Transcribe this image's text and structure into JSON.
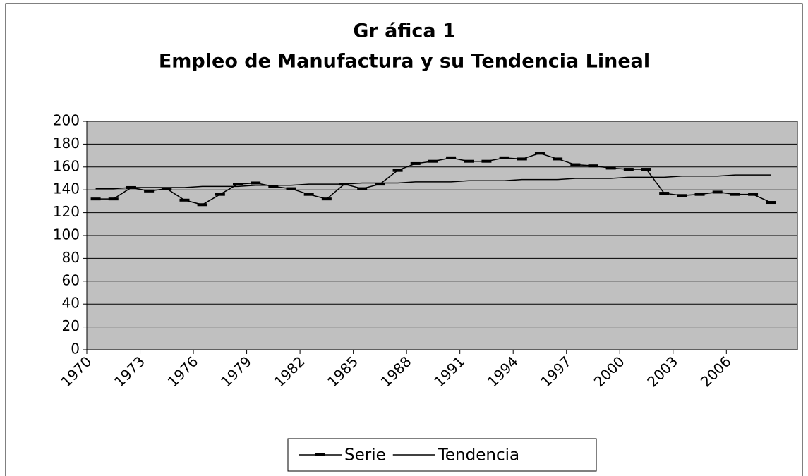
{
  "chart_data": {
    "type": "line",
    "title": "Gr áfica 1",
    "subtitle": "Empleo de Manufactura y su Tendencia Lineal",
    "categories": [
      "1970",
      null,
      null,
      "1973",
      null,
      null,
      "1976",
      null,
      null,
      "1979",
      null,
      null,
      "1982",
      null,
      null,
      "1985",
      null,
      null,
      "1988",
      null,
      null,
      "1991",
      null,
      null,
      "1994",
      null,
      null,
      "1997",
      null,
      null,
      "2000",
      null,
      null,
      "2003",
      null,
      null,
      "2006",
      null,
      null,
      null
    ],
    "series": [
      {
        "name": "Serie",
        "color": "#000000",
        "marker": true,
        "values": [
          132,
          132,
          142,
          139,
          141,
          131,
          127,
          136,
          145,
          146,
          143,
          141,
          136,
          132,
          145,
          141,
          145,
          157,
          163,
          165,
          168,
          165,
          165,
          168,
          167,
          172,
          167,
          162,
          161,
          159,
          158,
          158,
          137,
          135,
          136,
          138,
          136,
          136,
          129,
          null
        ]
      },
      {
        "name": "Tendencia",
        "color": "#000000",
        "marker": false,
        "values": [
          141,
          141,
          142,
          142,
          142,
          142,
          143,
          143,
          143,
          144,
          144,
          144,
          145,
          145,
          145,
          146,
          146,
          146,
          147,
          147,
          147,
          148,
          148,
          148,
          149,
          149,
          149,
          150,
          150,
          150,
          151,
          151,
          151,
          152,
          152,
          152,
          153,
          153,
          153,
          null
        ]
      }
    ],
    "ylim": [
      0,
      200
    ],
    "yticks": [
      0,
      20,
      40,
      60,
      80,
      100,
      120,
      140,
      160,
      180,
      200
    ],
    "grid": true,
    "legend": "bottom",
    "plot_background": "#c0c0c0"
  }
}
